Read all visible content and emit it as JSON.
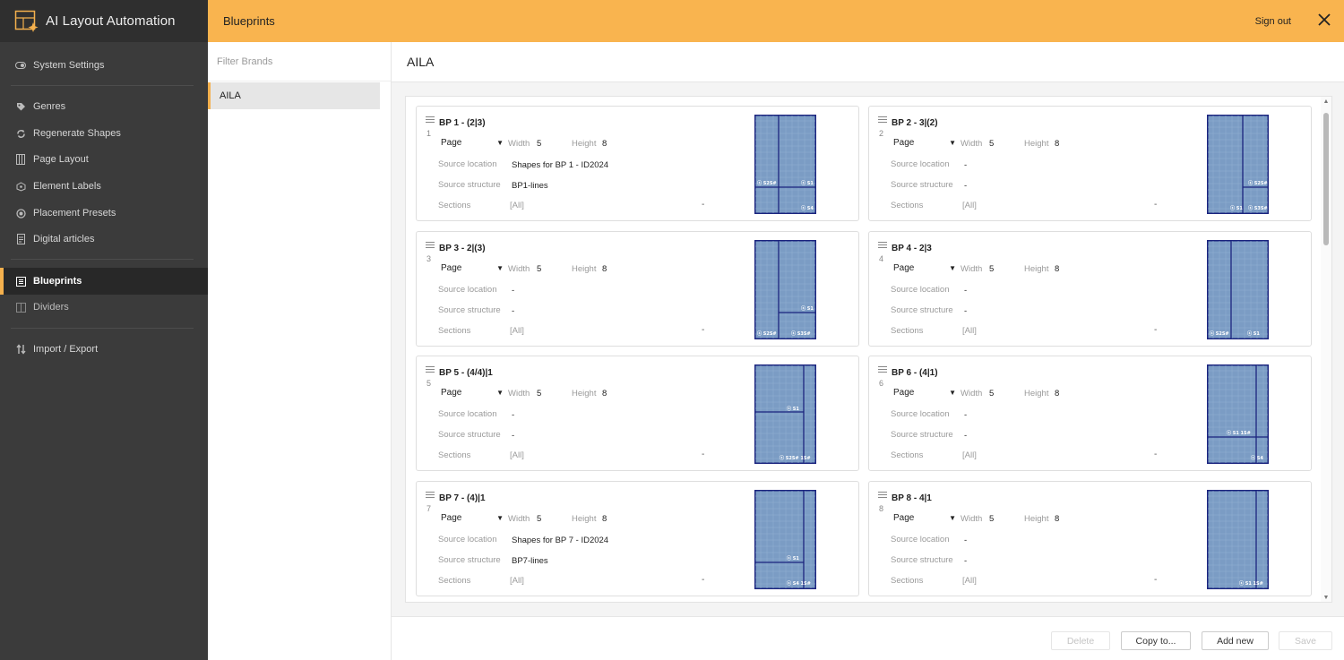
{
  "app": {
    "title": "AI Layout Automation"
  },
  "sidebar": {
    "items": [
      {
        "label": "System Settings",
        "icon": "toggle-icon"
      },
      {
        "label": "Genres",
        "icon": "tag-icon"
      },
      {
        "label": "Regenerate Shapes",
        "icon": "refresh-icon"
      },
      {
        "label": "Page Layout",
        "icon": "columns-icon"
      },
      {
        "label": "Element Labels",
        "icon": "label-icon"
      },
      {
        "label": "Placement Presets",
        "icon": "target-icon"
      },
      {
        "label": "Digital articles",
        "icon": "article-icon"
      },
      {
        "label": "Blueprints",
        "icon": "blueprint-icon",
        "active": true
      },
      {
        "label": "Dividers",
        "icon": "divider-icon"
      },
      {
        "label": "Import / Export",
        "icon": "import-export-icon"
      }
    ]
  },
  "header": {
    "title": "Blueprints",
    "signout": "Sign out"
  },
  "brands": {
    "filter_placeholder": "Filter Brands",
    "items": [
      "AILA"
    ]
  },
  "main": {
    "title": "AILA",
    "labels": {
      "width": "Width",
      "height": "Height",
      "source_location": "Source location",
      "source_structure": "Source structure",
      "sections": "Sections"
    },
    "blueprints": [
      {
        "index": "1",
        "title": "BP 1 - (2|3)",
        "type": "Page",
        "width": "5",
        "height": "8",
        "source_location": "Shapes for BP 1 - ID2024",
        "source_structure": "BP1-lines",
        "sections": "[All]",
        "dash": "-"
      },
      {
        "index": "2",
        "title": "BP 2 - 3|(2)",
        "type": "Page",
        "width": "5",
        "height": "8",
        "source_location": "-",
        "source_structure": "-",
        "sections": "[All]",
        "dash": "-"
      },
      {
        "index": "3",
        "title": "BP 3 -  2|(3)",
        "type": "Page",
        "width": "5",
        "height": "8",
        "source_location": "-",
        "source_structure": "-",
        "sections": "[All]",
        "dash": "-"
      },
      {
        "index": "4",
        "title": "BP 4 - 2|3",
        "type": "Page",
        "width": "5",
        "height": "8",
        "source_location": "-",
        "source_structure": "-",
        "sections": "[All]",
        "dash": "-"
      },
      {
        "index": "5",
        "title": "BP 5 - (4/4)|1",
        "type": "Page",
        "width": "5",
        "height": "8",
        "source_location": "-",
        "source_structure": "-",
        "sections": "[All]",
        "dash": "-"
      },
      {
        "index": "6",
        "title": "BP 6 - (4|1)",
        "type": "Page",
        "width": "5",
        "height": "8",
        "source_location": "-",
        "source_structure": "-",
        "sections": "[All]",
        "dash": "-"
      },
      {
        "index": "7",
        "title": "BP 7 - (4)|1",
        "type": "Page",
        "width": "5",
        "height": "8",
        "source_location": "Shapes for BP 7 - ID2024",
        "source_structure": "BP7-lines",
        "sections": "[All]",
        "dash": "-"
      },
      {
        "index": "8",
        "title": "BP 8 - 4|1",
        "type": "Page",
        "width": "5",
        "height": "8",
        "source_location": "-",
        "source_structure": "-",
        "sections": "[All]",
        "dash": "-"
      }
    ]
  },
  "footer": {
    "delete": "Delete",
    "copy_to": "Copy to...",
    "add_new": "Add new",
    "save": "Save"
  },
  "colors": {
    "accent": "#f9b44f",
    "sidebar": "#3b3b3b",
    "thumb_fill": "#7b9cc4",
    "thumb_line": "#1a237e"
  }
}
